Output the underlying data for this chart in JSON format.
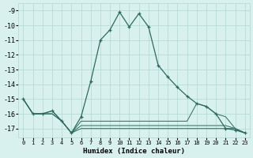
{
  "xlabel": "Humidex (Indice chaleur)",
  "x_values": [
    0,
    1,
    2,
    3,
    4,
    5,
    6,
    7,
    8,
    9,
    10,
    11,
    12,
    13,
    14,
    15,
    16,
    17,
    18,
    19,
    20,
    21,
    22,
    23
  ],
  "main_line": [
    -15.0,
    -16.0,
    -16.0,
    -15.8,
    -16.5,
    -17.3,
    -16.2,
    -13.8,
    -11.0,
    -10.3,
    -9.1,
    -10.1,
    -9.2,
    -10.1,
    -12.7,
    -13.5,
    -14.2,
    -14.8,
    -15.3,
    -15.5,
    -16.0,
    -17.0,
    -17.1,
    -17.3
  ],
  "line2": [
    -15.0,
    -16.0,
    -16.0,
    -15.8,
    -16.5,
    -17.3,
    -16.5,
    -16.5,
    -16.5,
    -16.5,
    -16.5,
    -16.5,
    -16.5,
    -16.5,
    -16.5,
    -16.5,
    -16.5,
    -16.5,
    -15.3,
    -15.5,
    -16.0,
    -16.2,
    -17.0,
    -17.3
  ],
  "line3": [
    -15.0,
    -16.0,
    -16.0,
    -16.0,
    -16.5,
    -17.3,
    -16.8,
    -16.8,
    -16.8,
    -16.8,
    -16.8,
    -16.8,
    -16.8,
    -16.8,
    -16.8,
    -16.8,
    -16.8,
    -16.8,
    -16.8,
    -16.8,
    -16.8,
    -16.8,
    -17.0,
    -17.3
  ],
  "line4": [
    -15.0,
    -16.0,
    -16.0,
    -16.0,
    -16.5,
    -17.3,
    -17.0,
    -17.0,
    -17.0,
    -17.0,
    -17.0,
    -17.0,
    -17.0,
    -17.0,
    -17.0,
    -17.0,
    -17.0,
    -17.0,
    -17.0,
    -17.0,
    -17.0,
    -17.0,
    -17.0,
    -17.3
  ],
  "line_color": "#2e6b5e",
  "bg_color": "#d8f0ee",
  "grid_color": "#b0d8d4",
  "ylim": [
    -17.6,
    -8.5
  ],
  "yticks": [
    -17,
    -16,
    -15,
    -14,
    -13,
    -12,
    -11,
    -10,
    -9
  ],
  "xlim": [
    -0.5,
    23.5
  ],
  "xtick_fontsize": 5.0,
  "ytick_fontsize": 6.0,
  "xlabel_fontsize": 6.5
}
